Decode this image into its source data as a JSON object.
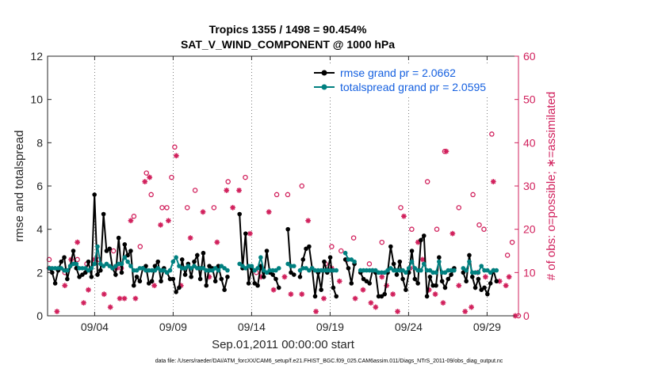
{
  "chart_data": {
    "type": "line",
    "title_line1": "Tropics 1355 / 1498 = 90.454%",
    "title_line2": "SAT_V_WIND_COMPONENT @ 1000 hPa",
    "xlabel": "Sep.01,2011 00:00:00 start",
    "ylabel_left": "rmse and totalspread",
    "ylabel_right": "# of obs: o=possible; ∗=assimilated",
    "footer": "data file: /Users/raeder/DAI/ATM_forcXX/CAM6_setup/f.e21.FHIST_BGC.f09_025.CAM6assim.011/Diags_NTrS_2011-09/obs_diag_output.nc",
    "xlim": [
      1.0,
      31.0
    ],
    "ylim_left": [
      0,
      12
    ],
    "ylim_right": [
      0,
      60
    ],
    "x_ticks": [
      4,
      9,
      14,
      19,
      24,
      29
    ],
    "x_tick_labels": [
      "09/04",
      "09/09",
      "09/14",
      "09/19",
      "09/24",
      "09/29"
    ],
    "y_ticks_left": [
      0,
      2,
      4,
      6,
      8,
      10,
      12
    ],
    "y_ticks_right": [
      0,
      10,
      20,
      30,
      40,
      50,
      60
    ],
    "colors": {
      "rmse": "#000000",
      "spread": "#008080",
      "obs": "#d1205c"
    },
    "series": [
      {
        "name": "rmse grand pr = 2.0662",
        "values": [
          2.2,
          2.0,
          1.5,
          2.1,
          2.5,
          2.7,
          1.7,
          2.3,
          3.0,
          2.2,
          1.8,
          1.9,
          2.0,
          2.5,
          1.8,
          5.6,
          1.9,
          2.1,
          4.7,
          3.0,
          3.1,
          2.2,
          1.9,
          3.6,
          2.0,
          3.3,
          2.8,
          3.0,
          1.4,
          1.8,
          1.6,
          2.2,
          2.3,
          1.5,
          1.6,
          2.3,
          2.5,
          1.6,
          2.2,
          2.0,
          1.7,
          1.7,
          1.1,
          1.3,
          2.6,
          1.9,
          2.4,
          1.8,
          2.5,
          2.8,
          1.7,
          2.9,
          1.4,
          2.3,
          2.2,
          1.6,
          2.3,
          1.7,
          1.2,
          1.8,
          null,
          null,
          null,
          4.7,
          2.2,
          3.8,
          1.5,
          2.2,
          1.5,
          1.4,
          2.3,
          1.8,
          3.0,
          2.0,
          1.9,
          1.7,
          1.3,
          null,
          null,
          4.0,
          2.0,
          1.9,
          null,
          1.8,
          2.6,
          3.1,
          3.2,
          2.2,
          0.9,
          2.0,
          1.2,
          2.5,
          2.0,
          2.7,
          1.3,
          0.9,
          null,
          null,
          2.6,
          2.2,
          1.5,
          2.4,
          null,
          2.0,
          1.7,
          1.6,
          1.5,
          2.1,
          2.0,
          0.9,
          0.9,
          1.0,
          2.0,
          3.2,
          2.4,
          1.9,
          2.5,
          1.7,
          1.2,
          2.0,
          3.0,
          1.7,
          1.5,
          3.5,
          3.7,
          0.9,
          1.8,
          1.4,
          1.4,
          2.7,
          1.6,
          1.3,
          1.7,
          1.9,
          2.2,
          null,
          null,
          2.0,
          1.6,
          2.8,
          1.8,
          1.3,
          1.7,
          1.2,
          1.3,
          1.0,
          1.5,
          2.1,
          1.6
        ],
        "marker": "dot"
      },
      {
        "name": "totalspread grand pr = 2.0595",
        "values": [
          2.2,
          2.2,
          2.2,
          2.2,
          2.2,
          2.1,
          2.1,
          2.3,
          2.4,
          2.4,
          2.2,
          2.2,
          2.2,
          2.1,
          2.2,
          2.4,
          3.2,
          2.4,
          2.3,
          2.4,
          2.3,
          2.2,
          2.3,
          2.4,
          2.4,
          2.7,
          2.5,
          2.3,
          2.1,
          2.1,
          2.2,
          2.2,
          2.1,
          2.1,
          2.1,
          2.1,
          2.2,
          2.1,
          2.1,
          2.0,
          2.1,
          2.5,
          2.7,
          2.3,
          2.2,
          2.2,
          2.3,
          2.2,
          2.3,
          2.2,
          2.2,
          2.2,
          2.1,
          2.1,
          2.1,
          2.2,
          2.1,
          2.3,
          2.2,
          2.1,
          null,
          null,
          null,
          2.4,
          2.3,
          2.2,
          2.3,
          2.3,
          2.1,
          2.2,
          2.7,
          2.1,
          2.0,
          2.1,
          2.1,
          2.1,
          2.2,
          null,
          null,
          2.4,
          2.3,
          2.3,
          null,
          2.1,
          2.2,
          2.2,
          2.1,
          2.2,
          2.1,
          2.1,
          2.1,
          2.1,
          2.1,
          2.1,
          2.1,
          2.1,
          null,
          null,
          2.9,
          2.6,
          2.6,
          2.5,
          null,
          2.1,
          2.1,
          2.1,
          2.1,
          2.1,
          2.1,
          2.0,
          2.0,
          2.0,
          2.1,
          2.2,
          2.1,
          2.1,
          2.1,
          2.1,
          2.0,
          2.2,
          2.5,
          2.2,
          2.1,
          2.1,
          2.4,
          2.1,
          2.1,
          2.0,
          2.0,
          2.5,
          2.0,
          2.0,
          2.1,
          2.1,
          2.1,
          null,
          null,
          2.2,
          2.1,
          2.5,
          2.0,
          2.0,
          2.0,
          2.3,
          2.1,
          2.1,
          2.0,
          2.1,
          2.1
        ],
        "marker": "dot"
      }
    ],
    "obs_possible": [
      {
        "x": 1.1,
        "y": 13
      },
      {
        "x": 2.1,
        "y": 10
      },
      {
        "x": 2.9,
        "y": 13
      },
      {
        "x": 3.5,
        "y": 12
      },
      {
        "x": 4.3,
        "y": 13
      },
      {
        "x": 5.2,
        "y": 15
      },
      {
        "x": 5.7,
        "y": 11
      },
      {
        "x": 6.5,
        "y": 23
      },
      {
        "x": 6.9,
        "y": 16
      },
      {
        "x": 7.3,
        "y": 33
      },
      {
        "x": 7.6,
        "y": 28
      },
      {
        "x": 8.3,
        "y": 25
      },
      {
        "x": 8.6,
        "y": 25
      },
      {
        "x": 8.9,
        "y": 32
      },
      {
        "x": 9.1,
        "y": 39
      },
      {
        "x": 9.9,
        "y": 25
      },
      {
        "x": 10.4,
        "y": 29
      },
      {
        "x": 11.6,
        "y": 25
      },
      {
        "x": 12.5,
        "y": 31
      },
      {
        "x": 13.6,
        "y": 32
      },
      {
        "x": 14.3,
        "y": 10
      },
      {
        "x": 15.6,
        "y": 28
      },
      {
        "x": 16.3,
        "y": 28
      },
      {
        "x": 17.2,
        "y": 30
      },
      {
        "x": 18.7,
        "y": 12
      },
      {
        "x": 19.1,
        "y": 16
      },
      {
        "x": 19.7,
        "y": 15
      },
      {
        "x": 20.5,
        "y": 18
      },
      {
        "x": 21.5,
        "y": 12
      },
      {
        "x": 22.3,
        "y": 17
      },
      {
        "x": 23.5,
        "y": 25
      },
      {
        "x": 24.2,
        "y": 20
      },
      {
        "x": 25.2,
        "y": 31
      },
      {
        "x": 25.8,
        "y": 20
      },
      {
        "x": 26.3,
        "y": 38
      },
      {
        "x": 27.2,
        "y": 25
      },
      {
        "x": 28.1,
        "y": 28
      },
      {
        "x": 28.5,
        "y": 21
      },
      {
        "x": 28.8,
        "y": 20
      },
      {
        "x": 29.3,
        "y": 42
      },
      {
        "x": 30.3,
        "y": 14
      },
      {
        "x": 30.6,
        "y": 17
      },
      {
        "x": 31.0,
        "y": 0
      }
    ],
    "obs_assimilated": [
      {
        "x": 1.1,
        "y": 11
      },
      {
        "x": 1.6,
        "y": 1
      },
      {
        "x": 2.1,
        "y": 7
      },
      {
        "x": 2.5,
        "y": 13
      },
      {
        "x": 2.9,
        "y": 17
      },
      {
        "x": 3.3,
        "y": 3
      },
      {
        "x": 3.6,
        "y": 6
      },
      {
        "x": 4.0,
        "y": 13
      },
      {
        "x": 4.6,
        "y": 5
      },
      {
        "x": 5.0,
        "y": 2
      },
      {
        "x": 5.4,
        "y": 11
      },
      {
        "x": 5.6,
        "y": 4
      },
      {
        "x": 5.9,
        "y": 4
      },
      {
        "x": 6.3,
        "y": 22
      },
      {
        "x": 6.6,
        "y": 4
      },
      {
        "x": 7.2,
        "y": 31
      },
      {
        "x": 7.5,
        "y": 32
      },
      {
        "x": 7.8,
        "y": 7
      },
      {
        "x": 8.2,
        "y": 21
      },
      {
        "x": 8.7,
        "y": 22
      },
      {
        "x": 9.2,
        "y": 37
      },
      {
        "x": 9.5,
        "y": 7
      },
      {
        "x": 10.1,
        "y": 18
      },
      {
        "x": 10.9,
        "y": 24
      },
      {
        "x": 11.3,
        "y": 9
      },
      {
        "x": 11.8,
        "y": 17
      },
      {
        "x": 12.4,
        "y": 29
      },
      {
        "x": 12.8,
        "y": 25
      },
      {
        "x": 13.2,
        "y": 29
      },
      {
        "x": 13.9,
        "y": 19
      },
      {
        "x": 14.6,
        "y": 9
      },
      {
        "x": 15.1,
        "y": 24
      },
      {
        "x": 15.4,
        "y": 6
      },
      {
        "x": 16.1,
        "y": 9
      },
      {
        "x": 16.5,
        "y": 5
      },
      {
        "x": 17.2,
        "y": 5
      },
      {
        "x": 17.6,
        "y": 22
      },
      {
        "x": 18.1,
        "y": 1
      },
      {
        "x": 18.6,
        "y": 4
      },
      {
        "x": 19.1,
        "y": 11
      },
      {
        "x": 19.6,
        "y": 8
      },
      {
        "x": 20.1,
        "y": 13
      },
      {
        "x": 20.6,
        "y": 4
      },
      {
        "x": 21.1,
        "y": 6
      },
      {
        "x": 21.6,
        "y": 3
      },
      {
        "x": 21.9,
        "y": 2
      },
      {
        "x": 22.3,
        "y": 9
      },
      {
        "x": 22.6,
        "y": 7
      },
      {
        "x": 23.0,
        "y": 5
      },
      {
        "x": 23.3,
        "y": 1
      },
      {
        "x": 23.7,
        "y": 23
      },
      {
        "x": 24.1,
        "y": 11
      },
      {
        "x": 24.6,
        "y": 17
      },
      {
        "x": 24.9,
        "y": 13
      },
      {
        "x": 25.3,
        "y": 6
      },
      {
        "x": 25.7,
        "y": 5
      },
      {
        "x": 26.2,
        "y": 3
      },
      {
        "x": 26.4,
        "y": 38
      },
      {
        "x": 26.8,
        "y": 19
      },
      {
        "x": 27.2,
        "y": 7
      },
      {
        "x": 27.6,
        "y": 1
      },
      {
        "x": 28.0,
        "y": 2
      },
      {
        "x": 28.4,
        "y": 10
      },
      {
        "x": 28.9,
        "y": 9
      },
      {
        "x": 29.4,
        "y": 31
      },
      {
        "x": 29.8,
        "y": 8
      },
      {
        "x": 30.2,
        "y": 7
      },
      {
        "x": 30.4,
        "y": 9
      },
      {
        "x": 30.8,
        "y": 0
      }
    ]
  }
}
